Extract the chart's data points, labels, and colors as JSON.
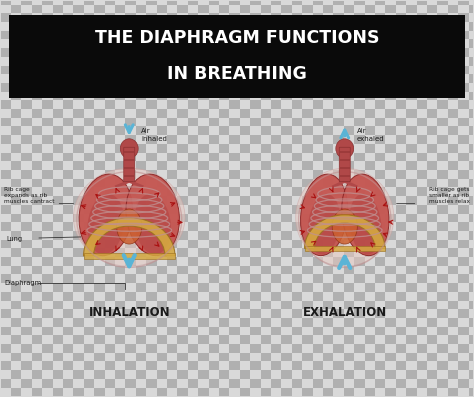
{
  "title_line1": "THE DIAPHRAGM FUNCTIONS",
  "title_line2": "IN BREATHING",
  "title_bg": "#0a0a0a",
  "title_text_color": "#ffffff",
  "checker_light": "#d9d9d9",
  "checker_dark": "#b0b0b0",
  "checker_size": 0.22,
  "label_inhalation": "INHALATION",
  "label_exhalation": "EXHALATION",
  "label_air_inhaled": "Air\ninhaled",
  "label_air_exhaled": "Air\nexhaled",
  "label_rib_cage_left": "Rib cage\nexpands as rib\nmuscles cantract",
  "label_rib_cage_right": "Rib cage gets\nsmaller as rib\nmuscles relax",
  "label_lung": "Lung",
  "label_diaphragm": "Diaphragm",
  "blue_arrow": "#5ab4d6",
  "red_arrow": "#aa1111",
  "lung_color": "#c45550",
  "lung_dark": "#8b2525",
  "lung_mid": "#b04040",
  "rib_color": "#e8c5c0",
  "rib_edge": "#c09090",
  "trachea_color": "#b04848",
  "trachea_dark": "#8b3030",
  "diaphragm_color": "#d4a840",
  "diaphragm_edge": "#9b7020",
  "spine_color": "#d4c090",
  "heart_color": "#cc6030",
  "text_color": "#1a1a1a",
  "fig_width": 4.74,
  "fig_height": 3.97,
  "dpi": 100
}
